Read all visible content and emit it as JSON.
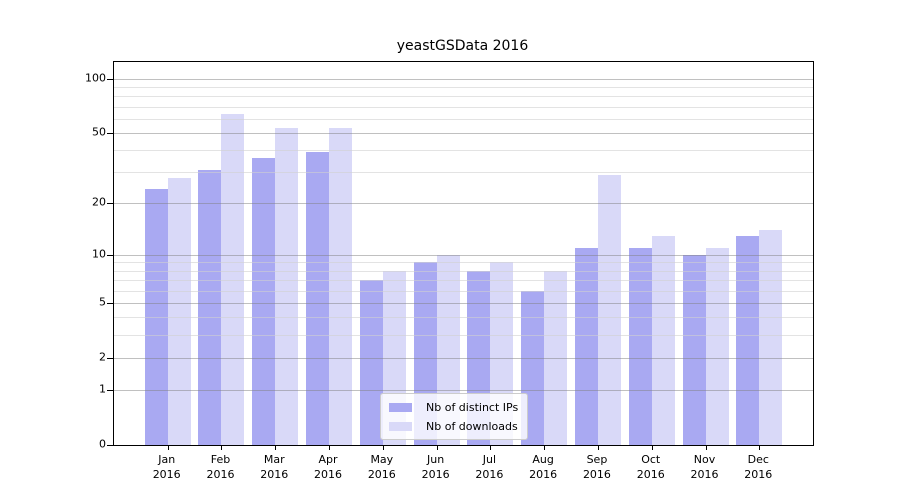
{
  "title": "yeastGSData 2016",
  "chart_data": {
    "type": "bar",
    "title": "yeastGSData 2016",
    "categories": [
      "Jan",
      "Feb",
      "Mar",
      "Apr",
      "May",
      "Jun",
      "Jul",
      "Aug",
      "Sep",
      "Oct",
      "Nov",
      "Dec"
    ],
    "x_tick_line2": "2016",
    "series": [
      {
        "name": "Nb of distinct IPs",
        "color": "#a9a9f2",
        "values": [
          24,
          31,
          36,
          39,
          7,
          9,
          8,
          6,
          11,
          11,
          10,
          13
        ]
      },
      {
        "name": "Nb of downloads",
        "color": "#d9d9f8",
        "values": [
          28,
          64,
          53,
          53,
          8,
          10,
          9,
          8,
          29,
          13,
          11,
          14
        ]
      }
    ],
    "y_scale": "log1p",
    "ylim": [
      0,
      123.5
    ],
    "y_major_ticks": [
      0,
      1,
      2,
      5,
      10,
      20,
      50,
      100
    ],
    "y_minor_gridlines": [
      3,
      4,
      6,
      7,
      8,
      9,
      30,
      40,
      60,
      70,
      80,
      90
    ],
    "grid": "on",
    "grid_above_bars": true,
    "legend": {
      "position": "lower-center",
      "entries": [
        "Nb of distinct IPs",
        "Nb of downloads"
      ]
    },
    "colors": {
      "spine": "#000000",
      "major_grid": "#c3c3c3",
      "minor_grid": "#e8e8e8",
      "background": "#ffffff"
    }
  }
}
